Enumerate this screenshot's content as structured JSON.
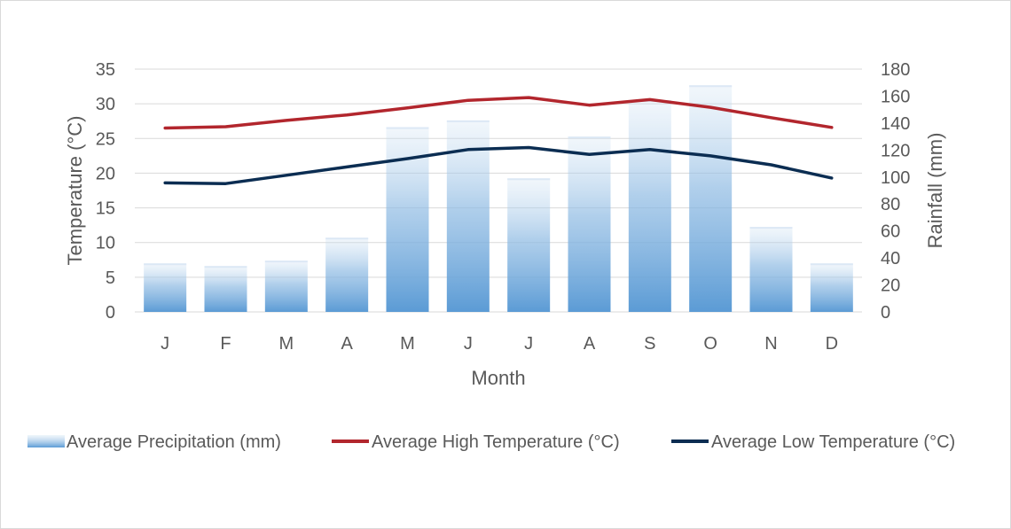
{
  "chart_data": {
    "type": "bar",
    "categories": [
      "J",
      "F",
      "M",
      "A",
      "M",
      "J",
      "J",
      "A",
      "S",
      "O",
      "N",
      "D"
    ],
    "xlabel": "Month",
    "ylabel": "Temperature (°C)",
    "y2label": "Rainfall (mm)",
    "ylim": [
      0,
      35
    ],
    "y2lim": [
      0,
      180
    ],
    "yticks": [
      "0",
      "5",
      "10",
      "15",
      "20",
      "25",
      "30",
      "35"
    ],
    "y2ticks": [
      "0",
      "20",
      "40",
      "60",
      "80",
      "100",
      "120",
      "140",
      "160",
      "180"
    ],
    "grid": true,
    "legend_position": "bottom",
    "series": [
      {
        "name": "Average Precipitation (mm)",
        "type": "bar",
        "axis": "right",
        "color": "#5b9bd5",
        "values": [
          36,
          34,
          38,
          55,
          137,
          142,
          99,
          130,
          157,
          168,
          63,
          36
        ]
      },
      {
        "name": "Average High Temperature (°C)",
        "type": "line",
        "axis": "left",
        "color": "#b2262d",
        "values": [
          26.5,
          26.7,
          27.6,
          28.4,
          29.4,
          30.5,
          30.9,
          29.8,
          30.6,
          29.5,
          28.0,
          26.6
        ]
      },
      {
        "name": "Average Low Temperature (°C)",
        "type": "line",
        "axis": "left",
        "color": "#0b2d52",
        "values": [
          18.6,
          18.5,
          19.7,
          20.9,
          22.1,
          23.4,
          23.7,
          22.7,
          23.4,
          22.5,
          21.2,
          19.3
        ]
      }
    ]
  }
}
